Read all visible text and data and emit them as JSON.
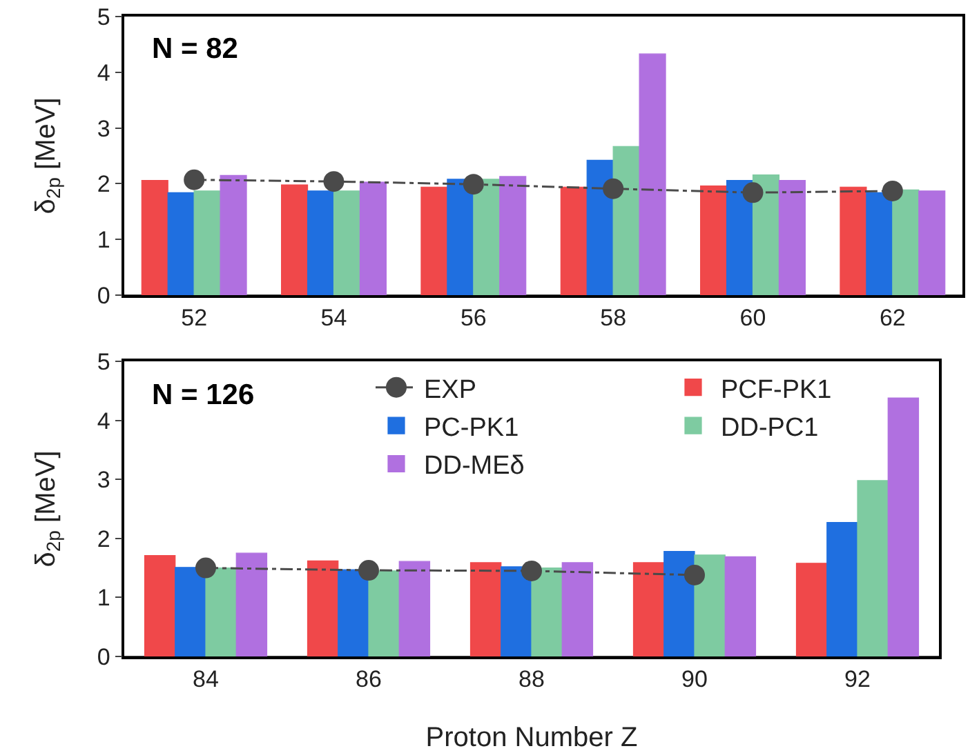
{
  "chart_data": [
    {
      "type": "bar",
      "annotations": [
        "N = 82"
      ],
      "ylabel": "δ$_{2p}$ [MeV]",
      "categories": [
        "52",
        "54",
        "56",
        "58",
        "60",
        "62"
      ],
      "ylim": [
        0,
        5
      ],
      "yticks": [
        0,
        1,
        2,
        3,
        4,
        5
      ],
      "grid": false,
      "legend": false,
      "series": [
        {
          "color": "#f0484a",
          "values": [
            2.06,
            1.98,
            1.94,
            1.94,
            1.96,
            1.94
          ]
        },
        {
          "color": "#1f6fe0",
          "values": [
            1.84,
            1.87,
            2.08,
            2.42,
            2.06,
            1.84
          ]
        },
        {
          "color": "#7ecba1",
          "values": [
            1.87,
            1.87,
            2.08,
            2.67,
            2.16,
            1.89
          ]
        },
        {
          "color": "#b070e0",
          "values": [
            2.15,
            2.03,
            2.13,
            4.33,
            2.06,
            1.87
          ]
        },
        {
          "type": "line",
          "color": "#4a4a4a",
          "marker": "circle",
          "line_style": "dashed",
          "values": [
            2.07,
            2.04,
            1.99,
            1.91,
            1.84,
            1.87
          ]
        }
      ]
    },
    {
      "type": "bar",
      "annotations": [
        "N = 126"
      ],
      "ylabel": "δ$_{2p}$ [MeV]",
      "xlabel": "Proton Number Z",
      "categories": [
        "84",
        "86",
        "88",
        "90",
        "92"
      ],
      "ylim": [
        0,
        5
      ],
      "yticks": [
        0,
        1,
        2,
        3,
        4,
        5
      ],
      "grid": false,
      "legend": "top",
      "series": [
        {
          "name": "PCF-PK1",
          "color": "#f0484a",
          "values": [
            1.71,
            1.62,
            1.59,
            1.59,
            1.58
          ]
        },
        {
          "name": "PC-PK1",
          "color": "#1f6fe0",
          "values": [
            1.51,
            1.47,
            1.52,
            1.78,
            2.27
          ]
        },
        {
          "name": "DD-PC1",
          "color": "#7ecba1",
          "values": [
            1.5,
            1.45,
            1.5,
            1.72,
            2.98
          ]
        },
        {
          "name": "DD-MEδ",
          "color": "#b070e0",
          "values": [
            1.75,
            1.61,
            1.59,
            1.69,
            4.38
          ]
        },
        {
          "name": "EXP",
          "type": "line",
          "color": "#4a4a4a",
          "marker": "circle",
          "line_style": "dashed",
          "values": [
            1.5,
            1.46,
            1.45,
            1.38,
            null
          ]
        }
      ]
    }
  ]
}
